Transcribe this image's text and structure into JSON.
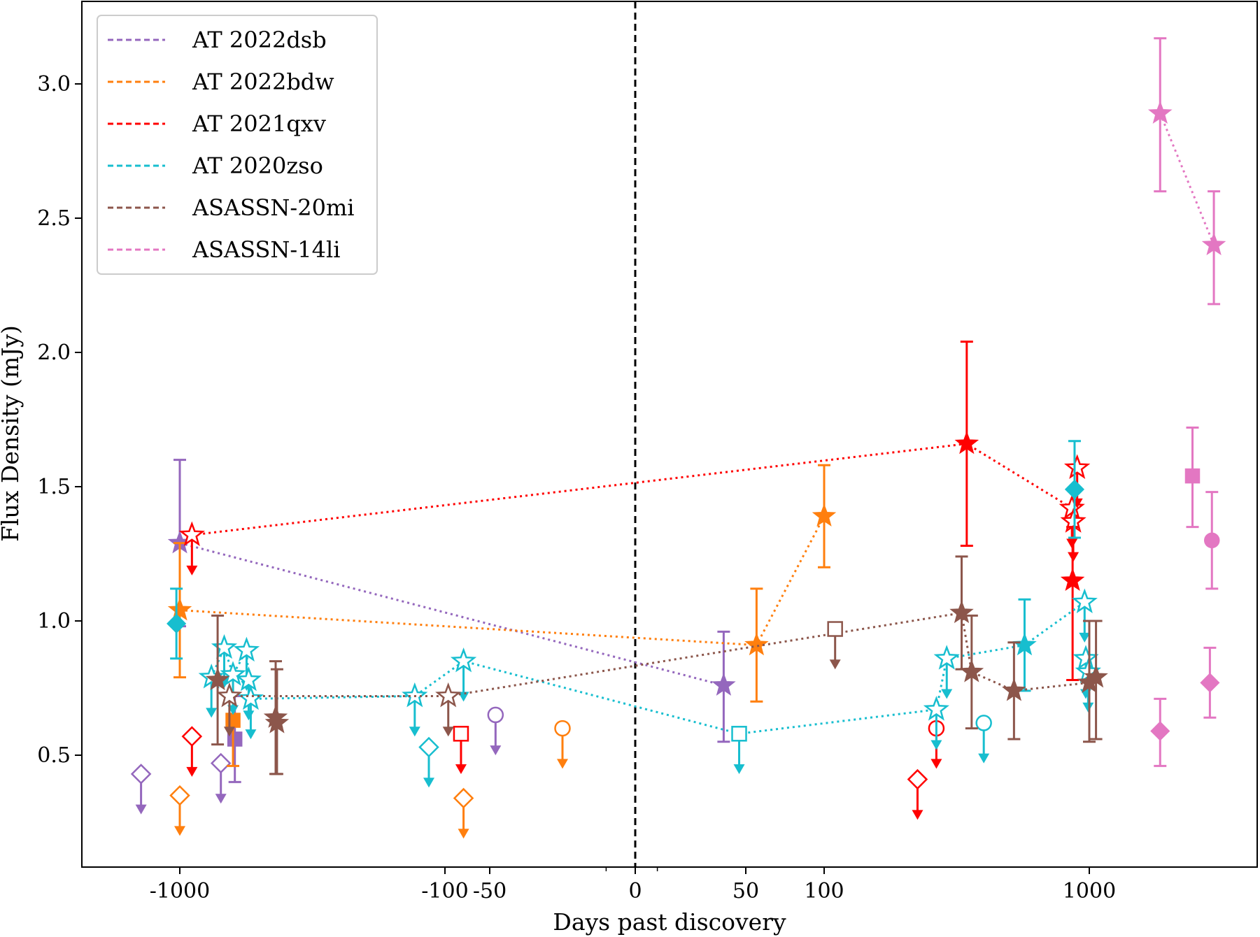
{
  "chart_data": {
    "type": "scatter",
    "xlabel": "Days past discovery",
    "ylabel": "Flux Density (mJy)",
    "x_scale": "symlog",
    "x_ticks": [
      {
        "value": -1000,
        "label": "-1000"
      },
      {
        "value": -100,
        "label": "-100"
      },
      {
        "value": -50,
        "label": "-50"
      },
      {
        "value": 0,
        "label": "0"
      },
      {
        "value": 50,
        "label": "50"
      },
      {
        "value": 100,
        "label": "100"
      },
      {
        "value": 1000,
        "label": "1000"
      }
    ],
    "y_ticks": [
      {
        "value": 0.5,
        "label": "0.5"
      },
      {
        "value": 1.0,
        "label": "1.0"
      },
      {
        "value": 1.5,
        "label": "1.5"
      },
      {
        "value": 2.0,
        "label": "2.0"
      },
      {
        "value": 2.5,
        "label": "2.5"
      },
      {
        "value": 3.0,
        "label": "3.0"
      }
    ],
    "ylim": [
      0.18,
      3.3
    ],
    "discovery_line_x": 0,
    "legend_position": "top-left",
    "series": [
      {
        "name": "AT 2022dsb",
        "color": "#9467bd",
        "detections": [
          {
            "x": -1000,
            "y": 1.29,
            "lo": 0.98,
            "hi": 1.6,
            "marker": "star"
          },
          {
            "x": 40,
            "y": 0.76,
            "lo": 0.55,
            "hi": 0.96,
            "marker": "star"
          },
          {
            "x": -620,
            "y": 0.56,
            "lo": 0.4,
            "hi": 0.72,
            "marker": "square"
          }
        ],
        "upper_limits": [
          {
            "x": -1400,
            "y": 0.43,
            "marker": "diamond"
          },
          {
            "x": -700,
            "y": 0.47,
            "marker": "diamond"
          },
          {
            "x": -48,
            "y": 0.65,
            "marker": "circle"
          }
        ],
        "connected": [
          0,
          1
        ]
      },
      {
        "name": "AT 2022bdw",
        "color": "#ff7f0e",
        "detections": [
          {
            "x": -1000,
            "y": 1.04,
            "lo": 0.79,
            "hi": 1.29,
            "marker": "star"
          },
          {
            "x": 55,
            "y": 0.91,
            "lo": 0.7,
            "hi": 1.12,
            "marker": "star"
          },
          {
            "x": 100,
            "y": 1.39,
            "lo": 1.2,
            "hi": 1.58,
            "marker": "star"
          },
          {
            "x": -630,
            "y": 0.63,
            "lo": 0.46,
            "hi": 0.8,
            "marker": "square"
          }
        ],
        "upper_limits": [
          {
            "x": -1000,
            "y": 0.35,
            "marker": "diamond"
          },
          {
            "x": -75,
            "y": 0.34,
            "marker": "diamond"
          },
          {
            "x": -25,
            "y": 0.6,
            "marker": "circle"
          }
        ],
        "connected": [
          0,
          1,
          2
        ]
      },
      {
        "name": "AT 2021qxv",
        "color": "#ff0000",
        "detections": [
          {
            "x": 345,
            "y": 1.66,
            "lo": 1.28,
            "hi": 2.04,
            "marker": "star"
          },
          {
            "x": 865,
            "y": 1.15,
            "lo": 0.78,
            "hi": 1.35,
            "marker": "star"
          }
        ],
        "upper_limits": [
          {
            "x": -900,
            "y": 1.32,
            "marker": "star"
          },
          {
            "x": -900,
            "y": 0.57,
            "marker": "diamond"
          },
          {
            "x": -78,
            "y": 0.58,
            "marker": "square"
          },
          {
            "x": 225,
            "y": 0.41,
            "marker": "diamond"
          },
          {
            "x": 265,
            "y": 0.6,
            "marker": "circle"
          },
          {
            "x": 860,
            "y": 1.42,
            "marker": "star"
          },
          {
            "x": 870,
            "y": 1.37,
            "marker": "star"
          },
          {
            "x": 900,
            "y": 1.57,
            "marker": "star"
          }
        ],
        "connected": [
          "ul0",
          0,
          "ul5"
        ]
      },
      {
        "name": "AT 2020zso",
        "color": "#17becf",
        "detections": [
          {
            "x": -1030,
            "y": 0.99,
            "lo": 0.86,
            "hi": 1.12,
            "marker": "diamond"
          },
          {
            "x": 570,
            "y": 0.91,
            "lo": 0.74,
            "hi": 1.08,
            "marker": "star"
          },
          {
            "x": 880,
            "y": 1.49,
            "lo": 1.31,
            "hi": 1.67,
            "marker": "diamond"
          }
        ],
        "upper_limits": [
          {
            "x": -760,
            "y": 0.79,
            "marker": "star"
          },
          {
            "x": -680,
            "y": 0.9,
            "marker": "star"
          },
          {
            "x": -630,
            "y": 0.8,
            "marker": "star"
          },
          {
            "x": -560,
            "y": 0.89,
            "marker": "star"
          },
          {
            "x": -550,
            "y": 0.78,
            "marker": "star"
          },
          {
            "x": -540,
            "y": 0.71,
            "marker": "star"
          },
          {
            "x": -130,
            "y": 0.72,
            "marker": "star"
          },
          {
            "x": -115,
            "y": 0.53,
            "marker": "diamond"
          },
          {
            "x": -75,
            "y": 0.85,
            "marker": "star"
          },
          {
            "x": 47,
            "y": 0.58,
            "marker": "square"
          },
          {
            "x": 265,
            "y": 0.67,
            "marker": "star"
          },
          {
            "x": 290,
            "y": 0.86,
            "marker": "star"
          },
          {
            "x": 400,
            "y": 0.62,
            "marker": "circle"
          },
          {
            "x": 960,
            "y": 1.07,
            "marker": "star"
          },
          {
            "x": 970,
            "y": 0.86,
            "marker": "star"
          },
          {
            "x": 990,
            "y": 0.81,
            "marker": "star"
          }
        ],
        "connected": [
          "ul0",
          "ul1",
          "ul2",
          "ul3",
          "ul4",
          "ul5",
          "ul6",
          "ul8",
          "ul9",
          "ul10",
          "ul11",
          1,
          "ul13"
        ]
      },
      {
        "name": "ASASSN-20mi",
        "color": "#8c564b",
        "detections": [
          {
            "x": -720,
            "y": 0.78,
            "lo": 0.54,
            "hi": 1.02,
            "marker": "star"
          },
          {
            "x": -435,
            "y": 0.64,
            "lo": 0.43,
            "hi": 0.85,
            "marker": "star"
          },
          {
            "x": -430,
            "y": 0.62,
            "lo": 0.43,
            "hi": 0.82,
            "marker": "star"
          },
          {
            "x": 330,
            "y": 1.03,
            "lo": 0.82,
            "hi": 1.24,
            "marker": "star"
          },
          {
            "x": 360,
            "y": 0.81,
            "lo": 0.6,
            "hi": 1.02,
            "marker": "star"
          },
          {
            "x": 520,
            "y": 0.74,
            "lo": 0.56,
            "hi": 0.92,
            "marker": "star"
          },
          {
            "x": 1000,
            "y": 0.77,
            "lo": 0.55,
            "hi": 1.0,
            "marker": "star"
          },
          {
            "x": 1060,
            "y": 0.79,
            "lo": 0.56,
            "hi": 1.0,
            "marker": "star"
          }
        ],
        "upper_limits": [
          {
            "x": -650,
            "y": 0.72,
            "marker": "star"
          },
          {
            "x": -95,
            "y": 0.72,
            "marker": "star"
          },
          {
            "x": 110,
            "y": 0.97,
            "marker": "square"
          }
        ],
        "connected": [
          "ul0",
          "ul1",
          3,
          4,
          5,
          6
        ]
      },
      {
        "name": "ASASSN-14li",
        "color": "#e377c2",
        "detections": [
          {
            "x": 1850,
            "y": 2.89,
            "lo": 2.6,
            "hi": 3.17,
            "marker": "star"
          },
          {
            "x": 2950,
            "y": 2.4,
            "lo": 2.18,
            "hi": 2.6,
            "marker": "star"
          },
          {
            "x": 2450,
            "y": 1.54,
            "lo": 1.35,
            "hi": 1.72,
            "marker": "square"
          },
          {
            "x": 2900,
            "y": 1.3,
            "lo": 1.12,
            "hi": 1.48,
            "marker": "circle"
          },
          {
            "x": 1850,
            "y": 0.59,
            "lo": 0.46,
            "hi": 0.71,
            "marker": "diamond"
          },
          {
            "x": 2850,
            "y": 0.77,
            "lo": 0.64,
            "hi": 0.9,
            "marker": "diamond"
          }
        ],
        "upper_limits": [],
        "connected": [
          0,
          1
        ]
      }
    ]
  }
}
